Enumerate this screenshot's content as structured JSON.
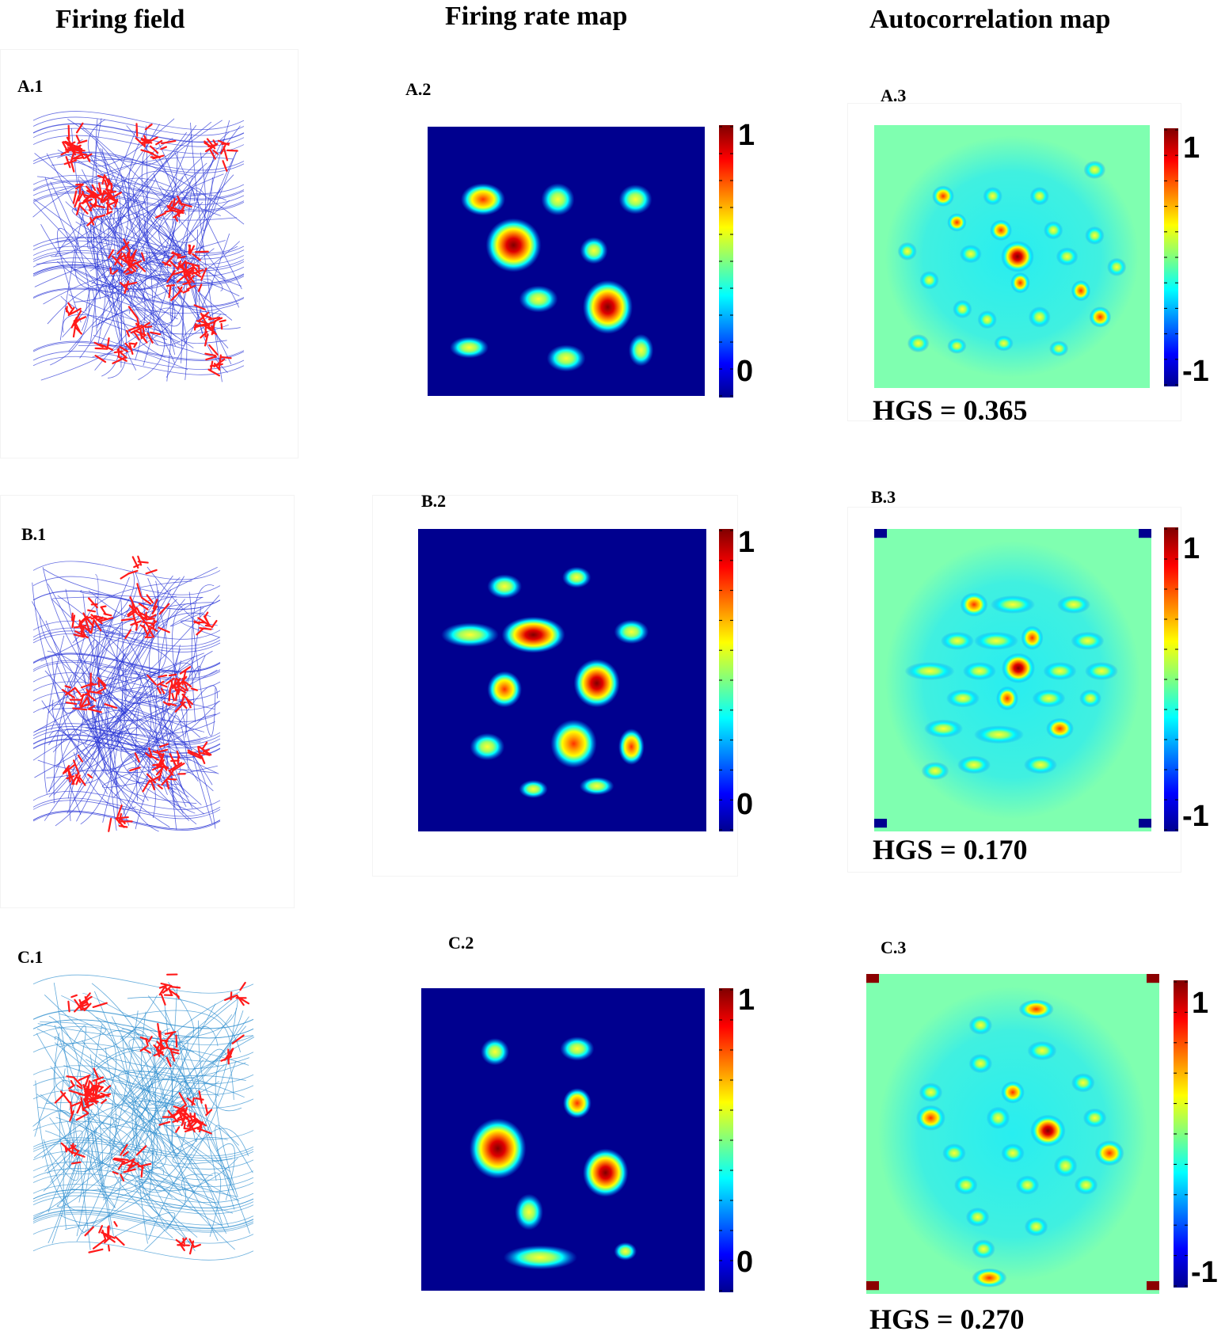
{
  "headers": {
    "firing_field": "Firing field",
    "firing_rate_map": "Firing rate map",
    "autocorrelation_map": "Autocorrelation map"
  },
  "rows": [
    {
      "field_label": "A.1",
      "rate_label": "A.2",
      "auto_label": "A.3",
      "hgs_text": "HGS = 0.365",
      "hgs_value": 0.365,
      "field_trace_color": "#2a35d6",
      "rate_colorbar": {
        "max": "1",
        "min": "0"
      },
      "auto_colorbar": {
        "max": "1",
        "min": "-1"
      }
    },
    {
      "field_label": "B.1",
      "rate_label": "B.2",
      "auto_label": "B.3",
      "hgs_text": "HGS = 0.170",
      "hgs_value": 0.17,
      "field_trace_color": "#2a35d6",
      "rate_colorbar": {
        "max": "1",
        "min": "0"
      },
      "auto_colorbar": {
        "max": "1",
        "min": "-1"
      }
    },
    {
      "field_label": "C.1",
      "rate_label": "C.2",
      "auto_label": "C.3",
      "hgs_text": "HGS = 0.270",
      "hgs_value": 0.27,
      "field_trace_color": "#2e8ecf",
      "rate_colorbar": {
        "max": "1",
        "min": "0"
      },
      "auto_colorbar": {
        "max": "1",
        "min": "-1"
      }
    }
  ],
  "colors": {
    "spike": "#ff1a1a",
    "rate_background": "#00008f",
    "auto_background": "#7fffb0",
    "auto_inner": "#33f0f0"
  },
  "colormap": "jet"
}
